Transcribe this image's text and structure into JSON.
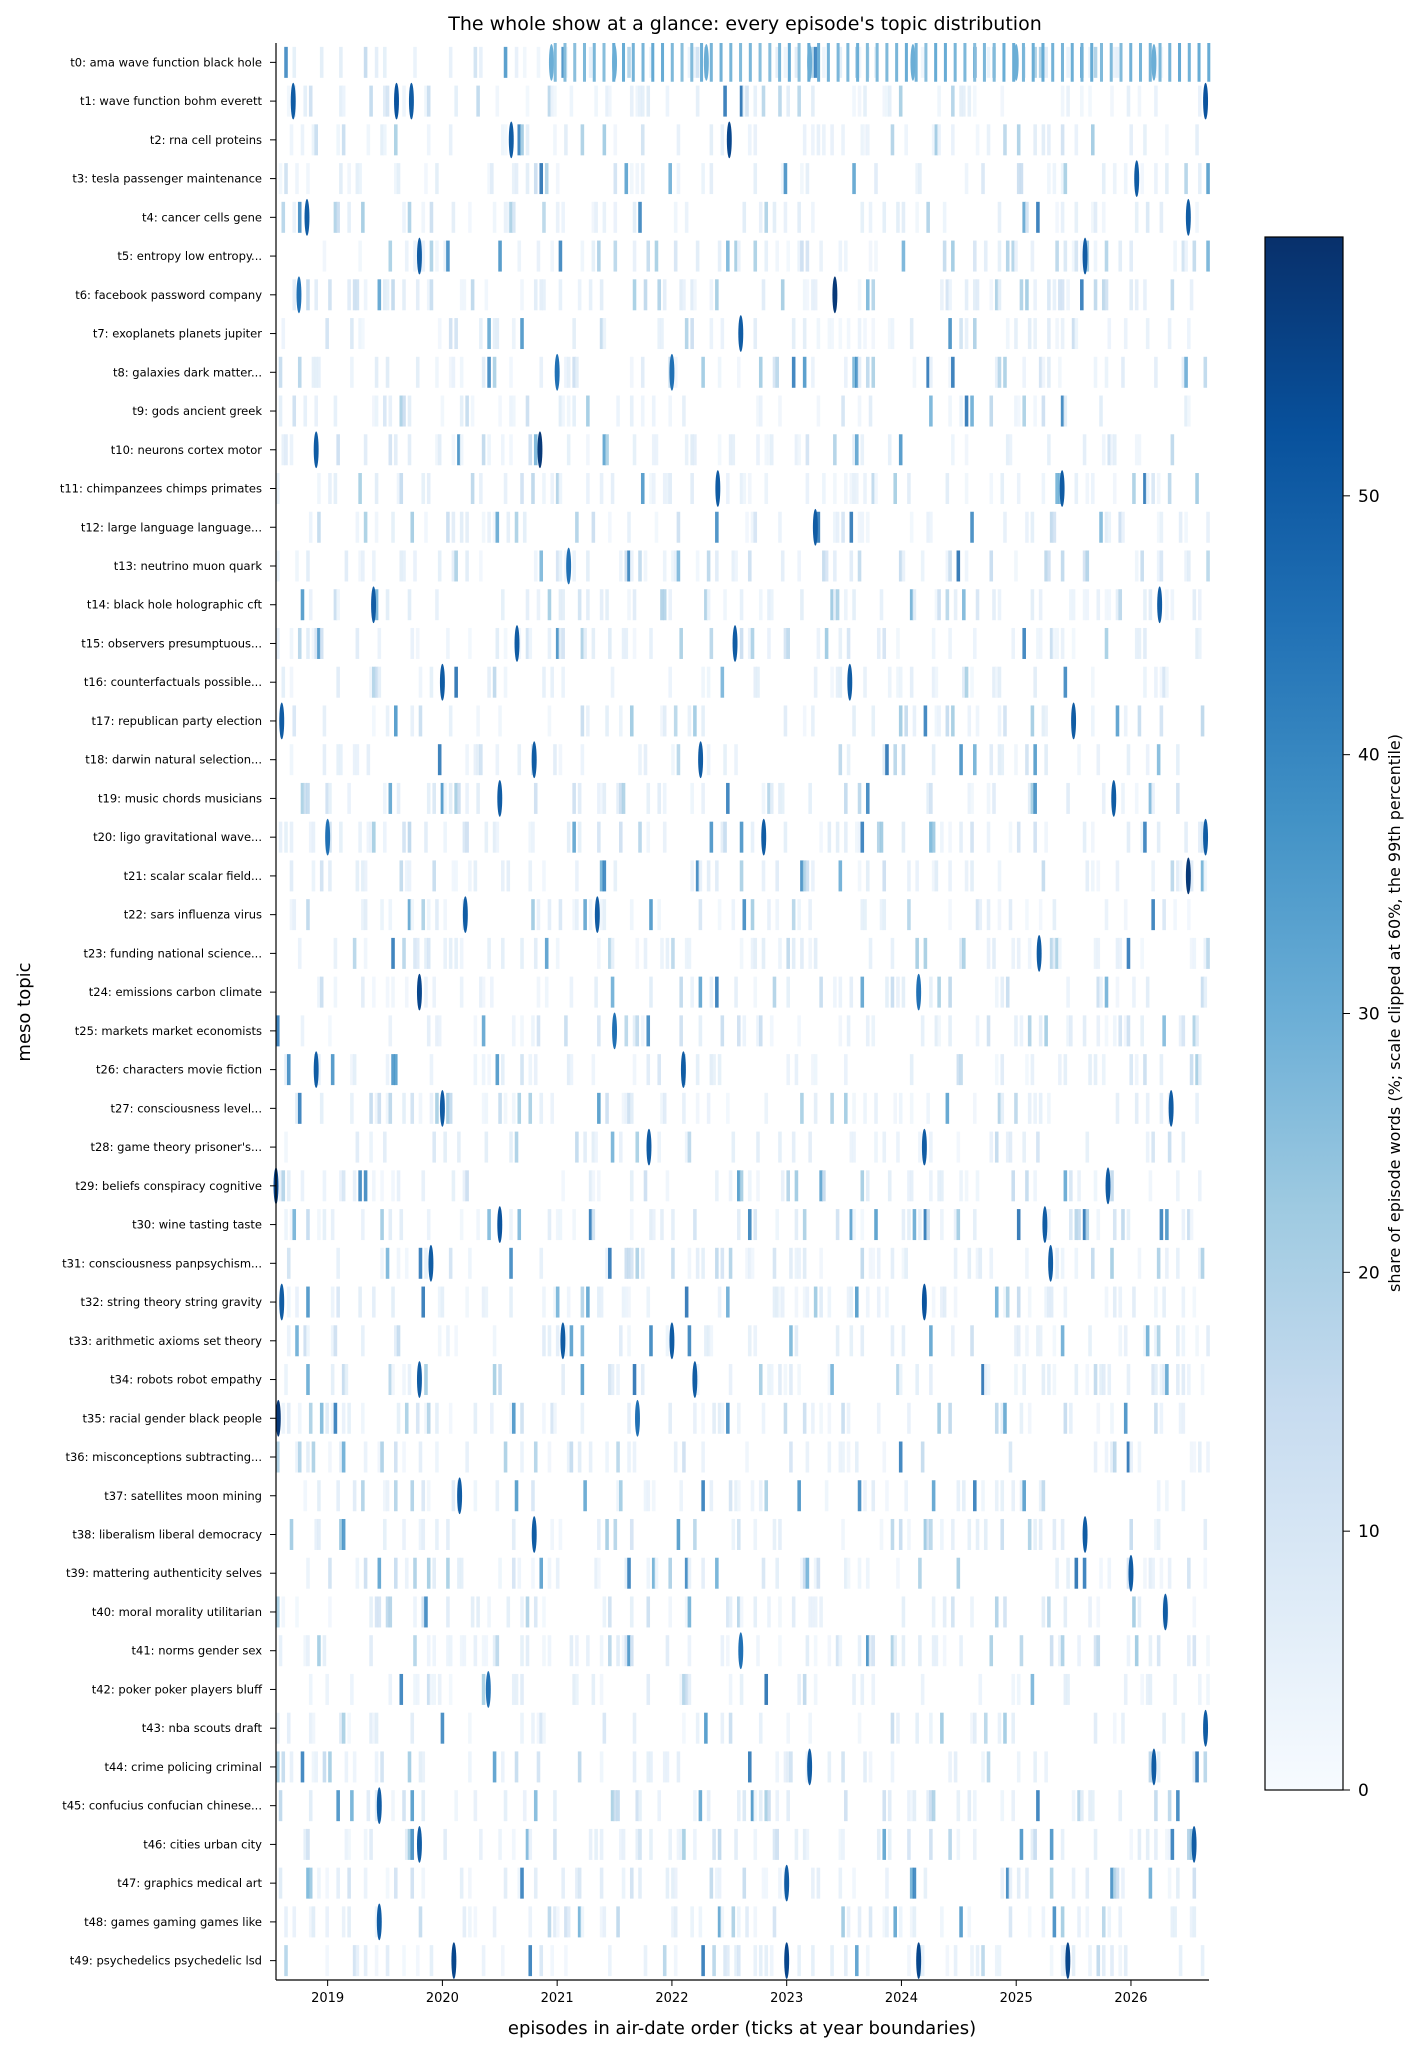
{
  "chart_data": {
    "type": "heatmap",
    "title": "The whole show at a glance: every episode's topic distribution",
    "xlabel": "episodes in air-date order (ticks at year boundaries)",
    "ylabel": "meso topic",
    "x_tick_labels": [
      "2019",
      "2020",
      "2021",
      "2022",
      "2023",
      "2024",
      "2025",
      "2026"
    ],
    "x_tick_positions_years": [
      2019,
      2020,
      2021,
      2022,
      2023,
      2024,
      2025,
      2026
    ],
    "x_range_years": [
      2018.55,
      2026.68
    ],
    "topics": [
      "t0: ama wave function black hole",
      "t1: wave function bohm everett",
      "t2: rna cell proteins",
      "t3: tesla passenger maintenance",
      "t4: cancer cells gene",
      "t5: entropy low entropy...",
      "t6: facebook password company",
      "t7: exoplanets planets jupiter",
      "t8: galaxies dark matter...",
      "t9: gods ancient greek",
      "t10: neurons cortex motor",
      "t11: chimpanzees chimps primates",
      "t12: large language language...",
      "t13: neutrino muon quark",
      "t14: black hole holographic cft",
      "t15: observers presumptuous...",
      "t16: counterfactuals possible...",
      "t17: republican party election",
      "t18: darwin natural selection...",
      "t19: music chords musicians",
      "t20: ligo gravitational wave...",
      "t21: scalar scalar field...",
      "t22: sars influenza virus",
      "t23: funding national science...",
      "t24: emissions carbon climate",
      "t25: markets market economists",
      "t26: characters movie fiction",
      "t27: consciousness level...",
      "t28: game theory prisoner's...",
      "t29: beliefs conspiracy cognitive",
      "t30: wine tasting taste",
      "t31: consciousness panpsychism...",
      "t32: string theory string gravity",
      "t33: arithmetic axioms set theory",
      "t34: robots robot empathy",
      "t35: racial gender black people",
      "t36: misconceptions subtracting...",
      "t37: satellites moon mining",
      "t38: liberalism liberal democracy",
      "t39: mattering authenticity selves",
      "t40: moral morality utilitarian",
      "t41: norms gender sex",
      "t42: poker poker players bluff",
      "t43: nba scouts draft",
      "t44: crime policing criminal",
      "t45: confucius confucian chinese...",
      "t46: cities urban city",
      "t47: graphics medical art",
      "t48: games gaming games like",
      "t49: psychedelics psychedelic lsd"
    ],
    "colorbar": {
      "label": "share of episode words (%; scale clipped at 60%, the 99th percentile)",
      "colormap": "Blues",
      "range": [
        0,
        60
      ],
      "ticks": [
        "0",
        "10",
        "20",
        "30",
        "40",
        "50"
      ],
      "tick_values": [
        0,
        10,
        20,
        30,
        40,
        50
      ]
    },
    "episode_count": 340,
    "peaks": [
      {
        "topic": "t0",
        "x": 2020.95,
        "value": 30
      },
      {
        "topic": "t0",
        "x": 2021.5,
        "value": 30
      },
      {
        "topic": "t0",
        "x": 2022.3,
        "value": 30
      },
      {
        "topic": "t0",
        "x": 2023.2,
        "value": 30
      },
      {
        "topic": "t0",
        "x": 2024.1,
        "value": 30
      },
      {
        "topic": "t0",
        "x": 2025.0,
        "value": 30
      },
      {
        "topic": "t0",
        "x": 2026.2,
        "value": 30
      },
      {
        "topic": "t1",
        "x": 2018.7,
        "value": 50
      },
      {
        "topic": "t1",
        "x": 2019.6,
        "value": 52
      },
      {
        "topic": "t1",
        "x": 2019.73,
        "value": 50
      },
      {
        "topic": "t1",
        "x": 2026.65,
        "value": 52
      },
      {
        "topic": "t2",
        "x": 2020.6,
        "value": 50
      },
      {
        "topic": "t2",
        "x": 2022.5,
        "value": 55
      },
      {
        "topic": "t3",
        "x": 2026.05,
        "value": 50
      },
      {
        "topic": "t4",
        "x": 2018.82,
        "value": 50
      },
      {
        "topic": "t4",
        "x": 2026.5,
        "value": 50
      },
      {
        "topic": "t5",
        "x": 2019.8,
        "value": 50
      },
      {
        "topic": "t5",
        "x": 2025.6,
        "value": 50
      },
      {
        "topic": "t6",
        "x": 2023.42,
        "value": 58
      },
      {
        "topic": "t6",
        "x": 2018.75,
        "value": 45
      },
      {
        "topic": "t7",
        "x": 2022.6,
        "value": 50
      },
      {
        "topic": "t8",
        "x": 2021.0,
        "value": 45
      },
      {
        "topic": "t8",
        "x": 2022.0,
        "value": 45
      },
      {
        "topic": "t10",
        "x": 2018.9,
        "value": 50
      },
      {
        "topic": "t10",
        "x": 2020.85,
        "value": 58
      },
      {
        "topic": "t11",
        "x": 2022.4,
        "value": 50
      },
      {
        "topic": "t11",
        "x": 2025.4,
        "value": 50
      },
      {
        "topic": "t12",
        "x": 2023.25,
        "value": 50
      },
      {
        "topic": "t13",
        "x": 2021.1,
        "value": 45
      },
      {
        "topic": "t14",
        "x": 2019.4,
        "value": 50
      },
      {
        "topic": "t14",
        "x": 2026.25,
        "value": 50
      },
      {
        "topic": "t15",
        "x": 2020.65,
        "value": 50
      },
      {
        "topic": "t15",
        "x": 2022.55,
        "value": 50
      },
      {
        "topic": "t16",
        "x": 2020.0,
        "value": 50
      },
      {
        "topic": "t16",
        "x": 2023.55,
        "value": 50
      },
      {
        "topic": "t17",
        "x": 2018.6,
        "value": 50
      },
      {
        "topic": "t17",
        "x": 2025.5,
        "value": 50
      },
      {
        "topic": "t18",
        "x": 2020.8,
        "value": 50
      },
      {
        "topic": "t18",
        "x": 2022.25,
        "value": 50
      },
      {
        "topic": "t19",
        "x": 2020.5,
        "value": 50
      },
      {
        "topic": "t19",
        "x": 2025.85,
        "value": 50
      },
      {
        "topic": "t20",
        "x": 2019.0,
        "value": 45
      },
      {
        "topic": "t20",
        "x": 2022.8,
        "value": 50
      },
      {
        "topic": "t20",
        "x": 2026.65,
        "value": 50
      },
      {
        "topic": "t21",
        "x": 2026.5,
        "value": 58
      },
      {
        "topic": "t22",
        "x": 2020.2,
        "value": 50
      },
      {
        "topic": "t22",
        "x": 2021.35,
        "value": 50
      },
      {
        "topic": "t23",
        "x": 2025.2,
        "value": 50
      },
      {
        "topic": "t24",
        "x": 2019.8,
        "value": 55
      },
      {
        "topic": "t24",
        "x": 2024.15,
        "value": 45
      },
      {
        "topic": "t25",
        "x": 2021.5,
        "value": 45
      },
      {
        "topic": "t26",
        "x": 2018.9,
        "value": 50
      },
      {
        "topic": "t26",
        "x": 2022.1,
        "value": 50
      },
      {
        "topic": "t27",
        "x": 2020.0,
        "value": 50
      },
      {
        "topic": "t27",
        "x": 2026.35,
        "value": 50
      },
      {
        "topic": "t28",
        "x": 2021.8,
        "value": 50
      },
      {
        "topic": "t28",
        "x": 2024.2,
        "value": 50
      },
      {
        "topic": "t29",
        "x": 2018.55,
        "value": 55
      },
      {
        "topic": "t29",
        "x": 2025.8,
        "value": 50
      },
      {
        "topic": "t30",
        "x": 2020.5,
        "value": 52
      },
      {
        "topic": "t30",
        "x": 2025.25,
        "value": 50
      },
      {
        "topic": "t31",
        "x": 2019.9,
        "value": 50
      },
      {
        "topic": "t31",
        "x": 2025.3,
        "value": 50
      },
      {
        "topic": "t32",
        "x": 2018.6,
        "value": 50
      },
      {
        "topic": "t32",
        "x": 2024.2,
        "value": 52
      },
      {
        "topic": "t33",
        "x": 2021.05,
        "value": 50
      },
      {
        "topic": "t33",
        "x": 2022.0,
        "value": 50
      },
      {
        "topic": "t34",
        "x": 2019.8,
        "value": 50
      },
      {
        "topic": "t34",
        "x": 2022.2,
        "value": 50
      },
      {
        "topic": "t35",
        "x": 2018.57,
        "value": 58
      },
      {
        "topic": "t35",
        "x": 2021.7,
        "value": 45
      },
      {
        "topic": "t37",
        "x": 2020.15,
        "value": 50
      },
      {
        "topic": "t38",
        "x": 2020.8,
        "value": 50
      },
      {
        "topic": "t38",
        "x": 2025.6,
        "value": 50
      },
      {
        "topic": "t39",
        "x": 2026.0,
        "value": 50
      },
      {
        "topic": "t40",
        "x": 2026.3,
        "value": 50
      },
      {
        "topic": "t41",
        "x": 2022.6,
        "value": 45
      },
      {
        "topic": "t42",
        "x": 2020.4,
        "value": 45
      },
      {
        "topic": "t43",
        "x": 2026.65,
        "value": 50
      },
      {
        "topic": "t44",
        "x": 2023.2,
        "value": 50
      },
      {
        "topic": "t44",
        "x": 2026.2,
        "value": 50
      },
      {
        "topic": "t45",
        "x": 2019.45,
        "value": 50
      },
      {
        "topic": "t46",
        "x": 2019.8,
        "value": 50
      },
      {
        "topic": "t46",
        "x": 2026.55,
        "value": 50
      },
      {
        "topic": "t47",
        "x": 2023.0,
        "value": 50
      },
      {
        "topic": "t48",
        "x": 2019.45,
        "value": 50
      },
      {
        "topic": "t49",
        "x": 2020.1,
        "value": 55
      },
      {
        "topic": "t49",
        "x": 2023.0,
        "value": 55
      },
      {
        "topic": "t49",
        "x": 2024.15,
        "value": 55
      },
      {
        "topic": "t49",
        "x": 2025.45,
        "value": 55
      }
    ]
  }
}
